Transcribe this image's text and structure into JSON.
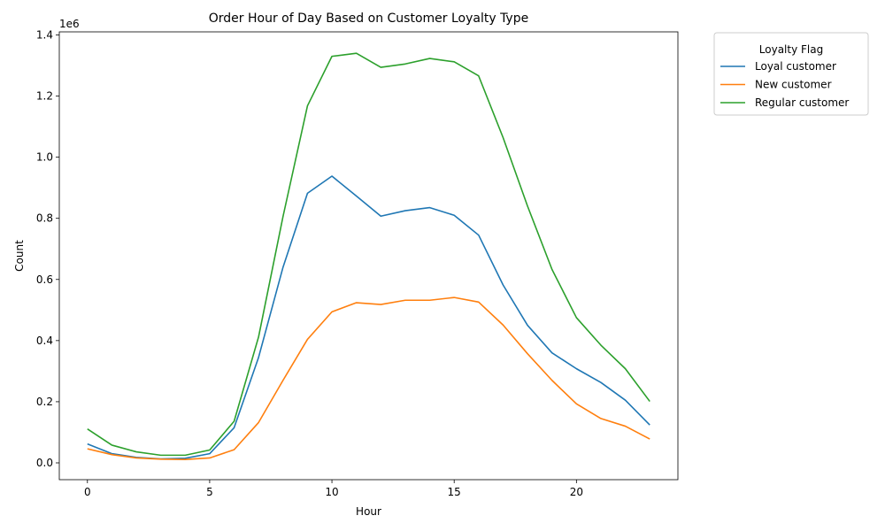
{
  "chart_data": {
    "type": "line",
    "title": "Order Hour of Day Based on Customer Loyalty Type",
    "xlabel": "Hour",
    "ylabel": "Count",
    "y_scale_label": "1e6",
    "xlim": [
      -1.15,
      24.15
    ],
    "ylim": [
      -0.055,
      1.41
    ],
    "x_ticks": [
      0,
      5,
      10,
      15,
      20
    ],
    "x_tick_labels": [
      "0",
      "5",
      "10",
      "15",
      "20"
    ],
    "y_ticks": [
      0.0,
      0.2,
      0.4,
      0.6,
      0.8,
      1.0,
      1.2,
      1.4
    ],
    "y_tick_labels": [
      "0.0",
      "0.2",
      "0.4",
      "0.6",
      "0.8",
      "1.0",
      "1.2",
      "1.4"
    ],
    "grid": false,
    "legend_title": "Loyalty Flag",
    "legend_position": "outside-upper-right",
    "x": [
      0,
      1,
      2,
      3,
      4,
      5,
      6,
      7,
      8,
      9,
      10,
      11,
      12,
      13,
      14,
      15,
      16,
      17,
      18,
      19,
      20,
      21,
      22,
      23
    ],
    "series": [
      {
        "name": "Loyal customer",
        "color": "#1f77b4",
        "values": [
          0.062,
          0.03,
          0.018,
          0.013,
          0.015,
          0.03,
          0.115,
          0.345,
          0.64,
          0.882,
          0.938,
          0.873,
          0.807,
          0.825,
          0.835,
          0.81,
          0.745,
          0.582,
          0.45,
          0.36,
          0.308,
          0.263,
          0.205,
          0.124
        ]
      },
      {
        "name": "New customer",
        "color": "#ff7f0e",
        "values": [
          0.046,
          0.027,
          0.016,
          0.012,
          0.011,
          0.016,
          0.043,
          0.132,
          0.27,
          0.404,
          0.494,
          0.524,
          0.518,
          0.532,
          0.532,
          0.541,
          0.526,
          0.451,
          0.357,
          0.27,
          0.193,
          0.145,
          0.12,
          0.078
        ]
      },
      {
        "name": "Regular customer",
        "color": "#2ca02c",
        "values": [
          0.111,
          0.058,
          0.036,
          0.025,
          0.025,
          0.042,
          0.136,
          0.412,
          0.806,
          1.168,
          1.33,
          1.34,
          1.294,
          1.305,
          1.323,
          1.312,
          1.266,
          1.064,
          0.84,
          0.633,
          0.475,
          0.385,
          0.308,
          0.201
        ]
      }
    ]
  }
}
